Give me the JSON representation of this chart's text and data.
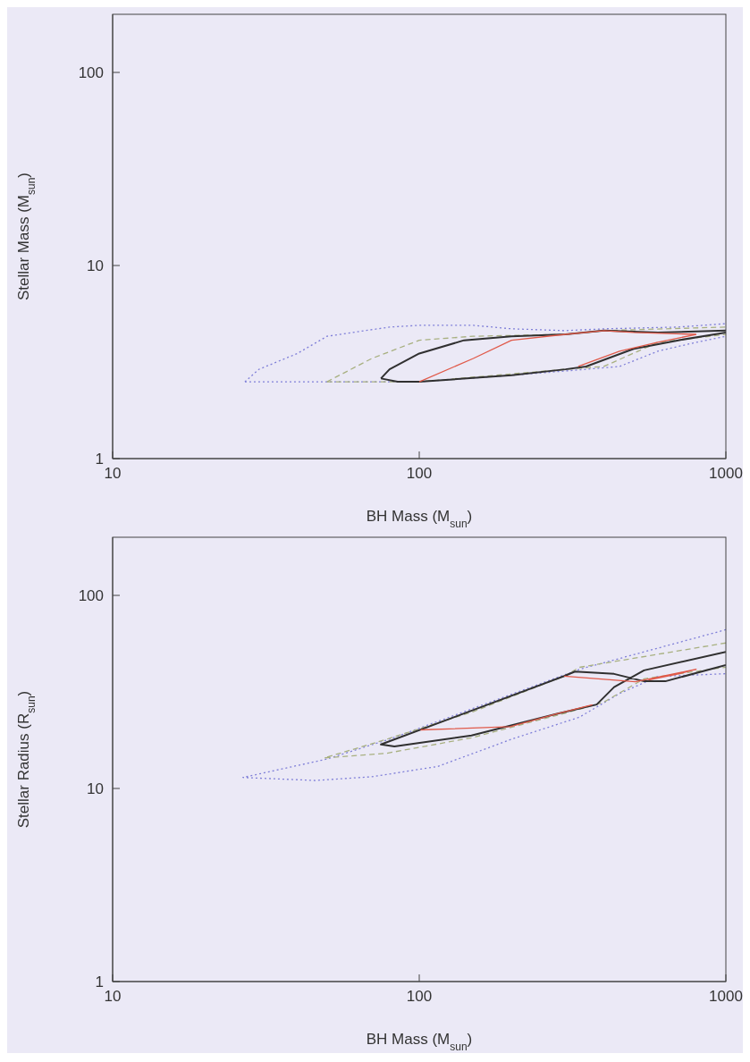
{
  "chart_data": [
    {
      "type": "line",
      "xlabel": "BH Mass (M$_{sun}$)",
      "ylabel": "Stellar Mass (M$_{sun}$)",
      "log": "xy",
      "xlim": [
        10,
        1000
      ],
      "ylim": [
        1,
        200
      ],
      "xticks": [
        10,
        100,
        1000
      ],
      "yticks": [
        1,
        10,
        100
      ],
      "grid": false,
      "legend": false,
      "marker": "none",
      "series": [
        {
          "color": "#7f7fd8",
          "line_style": "dotted",
          "x": [
            27,
            30,
            40,
            50,
            80,
            100,
            150,
            200,
            300,
            400,
            700,
            1000
          ],
          "values": [
            2.5,
            2.9,
            3.5,
            4.3,
            4.8,
            4.9,
            4.9,
            4.7,
            4.6,
            4.7,
            4.8,
            5.0
          ]
        },
        {
          "color": "#7f7fd8",
          "line_style": "dotted",
          "x": [
            27,
            100,
            200,
            350,
            450,
            600,
            800,
            1000
          ],
          "values": [
            2.5,
            2.5,
            2.7,
            2.9,
            3.0,
            3.6,
            4.0,
            4.3
          ]
        },
        {
          "color": "#a8b080",
          "line_style": "dashed",
          "x": [
            50,
            70,
            100,
            150,
            300,
            400,
            1000
          ],
          "values": [
            2.5,
            3.3,
            4.1,
            4.3,
            4.4,
            4.6,
            4.8
          ]
        },
        {
          "color": "#a8b080",
          "line_style": "dashed",
          "x": [
            50,
            100,
            300,
            400,
            600,
            1000
          ],
          "values": [
            2.5,
            2.5,
            2.9,
            3.0,
            4.0,
            4.4
          ]
        },
        {
          "color": "#303030",
          "line_style": "solid",
          "x": [
            75,
            80,
            100,
            140,
            200,
            300,
            400,
            600,
            1000
          ],
          "values": [
            2.6,
            2.9,
            3.5,
            4.1,
            4.3,
            4.4,
            4.6,
            4.5,
            4.6
          ]
        },
        {
          "color": "#303030",
          "line_style": "solid",
          "x": [
            75,
            85,
            100,
            200,
            300,
            350,
            500,
            700,
            1000
          ],
          "values": [
            2.6,
            2.5,
            2.5,
            2.7,
            2.9,
            3.0,
            3.7,
            4.1,
            4.5
          ]
        },
        {
          "color": "#e05a4a",
          "line_style": "solid",
          "x": [
            100,
            150,
            200,
            300,
            400,
            500,
            800
          ],
          "values": [
            2.5,
            3.3,
            4.1,
            4.4,
            4.6,
            4.5,
            4.4
          ]
        },
        {
          "color": "#e05a4a",
          "line_style": "solid",
          "x": [
            330,
            450,
            600,
            800
          ],
          "values": [
            3.0,
            3.6,
            4.0,
            4.4
          ]
        }
      ]
    },
    {
      "type": "line",
      "xlabel": "BH Mass (M$_{sun}$)",
      "ylabel": "Stellar Radius (R$_{sun}$)",
      "log": "xy",
      "xlim": [
        10,
        1000
      ],
      "ylim": [
        1,
        200
      ],
      "xticks": [
        10,
        100,
        1000
      ],
      "yticks": [
        1,
        10,
        100
      ],
      "grid": false,
      "legend": false,
      "marker": "none",
      "series": [
        {
          "color": "#7f7fd8",
          "line_style": "dotted",
          "x": [
            1000,
            333,
            150,
            80,
            50,
            26.6,
            45.8,
            70,
            115,
            200,
            333,
            450,
            600,
            1000
          ],
          "values": [
            66.4,
            41.4,
            26,
            18,
            14.2,
            11.4,
            11,
            11.5,
            13,
            18,
            23.4,
            31,
            38,
            39.3
          ]
        },
        {
          "color": "#a8b080",
          "line_style": "dashed",
          "x": [
            1000,
            333,
            297,
            150,
            75,
            49,
            78,
            148,
            333,
            400,
            541,
            1000
          ],
          "values": [
            56.7,
            42.4,
            38.2,
            25,
            17.6,
            14.4,
            15.2,
            18.3,
            25.7,
            28,
            37,
            42.5
          ]
        },
        {
          "color": "#303030",
          "line_style": "solid",
          "x": [
            1000,
            635,
            541,
            432,
            322,
            297,
            75,
            83,
            148,
            283,
            379,
            432,
            541,
            1000
          ],
          "values": [
            43.6,
            35.9,
            35.9,
            39.2,
            40.3,
            38.2,
            16.9,
            16.5,
            18.8,
            24.4,
            27.2,
            33.5,
            40.9,
            51
          ]
        },
        {
          "color": "#e05a4a",
          "line_style": "solid",
          "x": [
            367,
            280,
            198,
            101
          ],
          "values": [
            27.1,
            24.3,
            20.9,
            20.1
          ]
        },
        {
          "color": "#e05a4a",
          "line_style": "solid",
          "x": [
            297,
            507,
            800,
            700,
            560
          ],
          "values": [
            38.2,
            35.7,
            41.4,
            39.2,
            36.5
          ]
        }
      ]
    }
  ]
}
